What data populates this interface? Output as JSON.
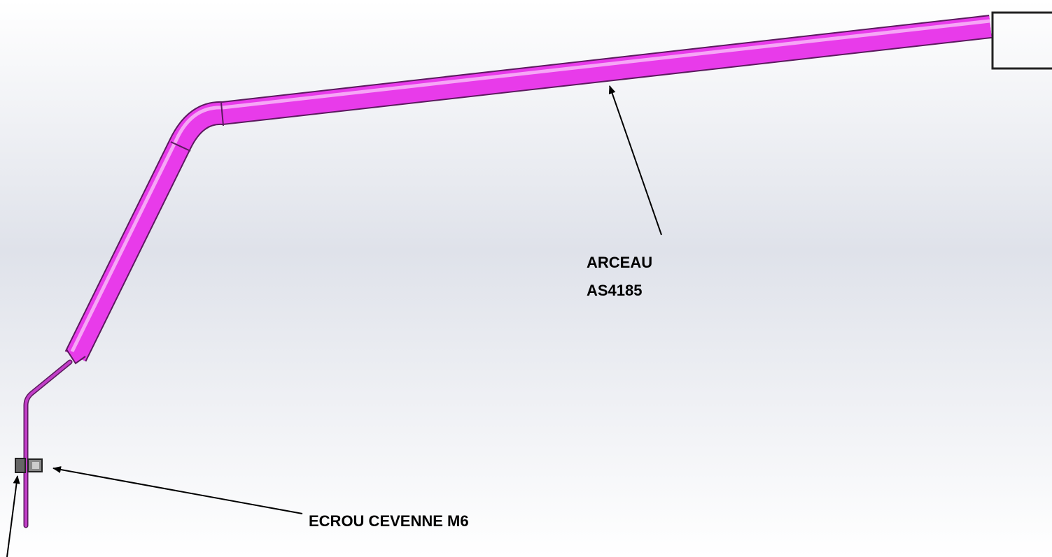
{
  "labels": {
    "arceau": [
      "ARCEAU",
      "AS4185"
    ],
    "ecrou": "ECROU CEVENNE M6"
  }
}
